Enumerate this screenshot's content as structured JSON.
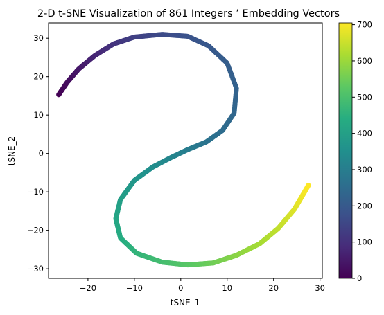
{
  "chart_data": {
    "type": "scatter",
    "title": "2-D t-SNE Visualization of 861 Integers ’ Embedding Vectors",
    "xlabel": "tSNE_1",
    "ylabel": "tSNE_2",
    "xlim": [
      -28.5,
      30.5
    ],
    "ylim": [
      -32.5,
      34
    ],
    "x_ticks": [
      -20,
      -10,
      0,
      10,
      20,
      30
    ],
    "y_ticks": [
      -30,
      -20,
      -10,
      0,
      10,
      20,
      30
    ],
    "grid": false,
    "colormap": "viridis",
    "color_range": [
      0,
      705
    ],
    "colorbar_ticks": [
      0,
      100,
      200,
      300,
      400,
      500,
      600,
      700
    ],
    "curve_keypoints": [
      {
        "value": 0,
        "x": -26.3,
        "y": 15.3
      },
      {
        "value": 20,
        "x": -24.5,
        "y": 18.5
      },
      {
        "value": 45,
        "x": -22.0,
        "y": 22.0
      },
      {
        "value": 75,
        "x": -18.5,
        "y": 25.5
      },
      {
        "value": 105,
        "x": -14.5,
        "y": 28.5
      },
      {
        "value": 135,
        "x": -10.0,
        "y": 30.3
      },
      {
        "value": 160,
        "x": -4.0,
        "y": 31.0
      },
      {
        "value": 180,
        "x": 1.5,
        "y": 30.5
      },
      {
        "value": 195,
        "x": 6.0,
        "y": 28.0
      },
      {
        "value": 210,
        "x": 10.0,
        "y": 23.5
      },
      {
        "value": 222,
        "x": 12.0,
        "y": 17.0
      },
      {
        "value": 235,
        "x": 11.5,
        "y": 10.5
      },
      {
        "value": 250,
        "x": 9.0,
        "y": 6.0
      },
      {
        "value": 270,
        "x": 5.5,
        "y": 3.0
      },
      {
        "value": 295,
        "x": 1.5,
        "y": 1.0
      },
      {
        "value": 320,
        "x": -2.0,
        "y": -1.0
      },
      {
        "value": 345,
        "x": -6.0,
        "y": -3.5
      },
      {
        "value": 370,
        "x": -10.0,
        "y": -7.0
      },
      {
        "value": 395,
        "x": -13.0,
        "y": -12.0
      },
      {
        "value": 415,
        "x": -14.0,
        "y": -17.0
      },
      {
        "value": 435,
        "x": -13.0,
        "y": -22.0
      },
      {
        "value": 460,
        "x": -9.5,
        "y": -26.0
      },
      {
        "value": 490,
        "x": -4.0,
        "y": -28.3
      },
      {
        "value": 520,
        "x": 1.5,
        "y": -29.0
      },
      {
        "value": 550,
        "x": 7.0,
        "y": -28.5
      },
      {
        "value": 580,
        "x": 12.0,
        "y": -26.5
      },
      {
        "value": 610,
        "x": 17.0,
        "y": -23.5
      },
      {
        "value": 640,
        "x": 21.0,
        "y": -19.5
      },
      {
        "value": 670,
        "x": 24.5,
        "y": -14.5
      },
      {
        "value": 705,
        "x": 27.5,
        "y": -8.3
      }
    ]
  }
}
